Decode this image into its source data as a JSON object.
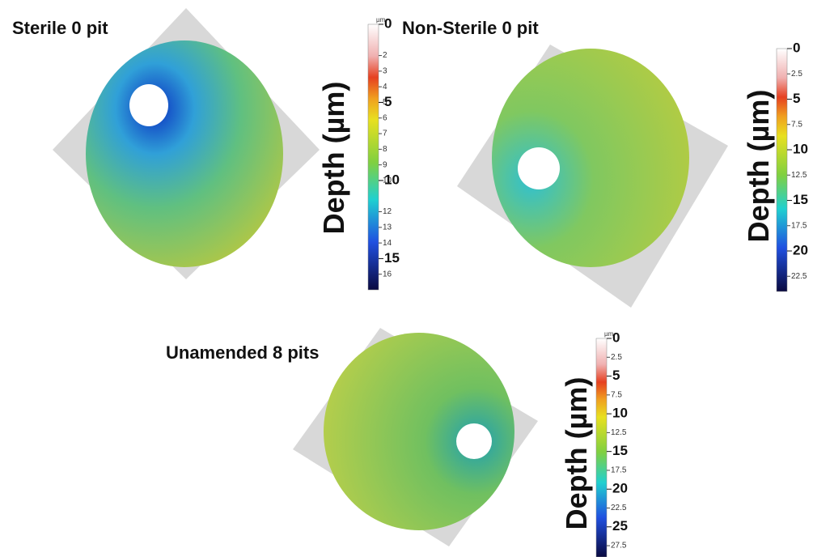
{
  "panels": [
    {
      "title": "Sterile 0 pit",
      "axis_label": "Depth (µm)",
      "unit": "µm",
      "range": [
        0,
        17
      ],
      "major_ticks": [
        0,
        5,
        10,
        15
      ],
      "minor_ticks": [
        2,
        3,
        4,
        5,
        6,
        7,
        8,
        9,
        10,
        12,
        13,
        14,
        16
      ]
    },
    {
      "title": "Non-Sterile 0  pit",
      "axis_label": "Depth (µm)",
      "range": [
        0,
        24
      ],
      "major_ticks": [
        0,
        5,
        10,
        15,
        20
      ],
      "minor_ticks": [
        2.5,
        7.5,
        12.5,
        17.5,
        22.5
      ]
    },
    {
      "title": "Unamended 8 pits",
      "axis_label": "Depth (µm)",
      "unit": "µm",
      "range": [
        0,
        29
      ],
      "major_ticks": [
        0,
        5,
        10,
        15,
        20,
        25
      ],
      "minor_ticks": [
        2.5,
        7.5,
        12.5,
        17.5,
        22.5,
        27.5
      ]
    }
  ]
}
